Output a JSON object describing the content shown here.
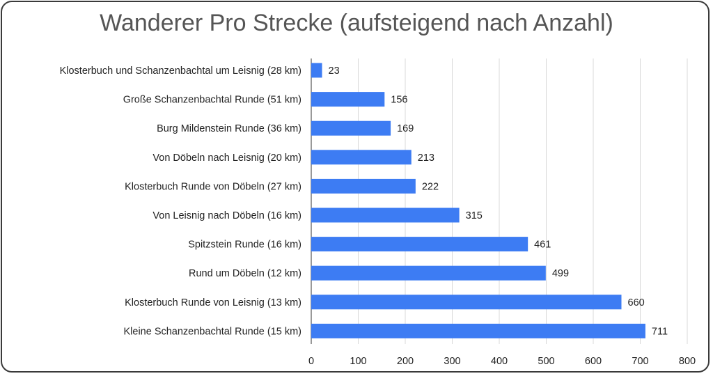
{
  "chart_data": {
    "type": "bar",
    "orientation": "horizontal",
    "title": "Wanderer Pro Strecke (aufsteigend nach Anzahl)",
    "categories": [
      "Klosterbuch und Schanzenbachtal um Leisnig (28 km)",
      "Große Schanzenbachtal Runde (51 km)",
      "Burg Mildenstein Runde (36 km)",
      "Von Döbeln nach Leisnig (20 km)",
      "Klosterbuch Runde von Döbeln (27 km)",
      "Von Leisnig nach Döbeln (16 km)",
      "Spitzstein Runde (16 km)",
      "Rund um Döbeln (12 km)",
      "Klosterbuch Runde von Leisnig (13 km)",
      "Kleine Schanzenbachtal Runde (15 km)"
    ],
    "values": [
      23,
      156,
      169,
      213,
      222,
      315,
      461,
      499,
      660,
      711
    ],
    "xlim": [
      0,
      800
    ],
    "xticks": [
      "0",
      "100",
      "200",
      "300",
      "400",
      "500",
      "600",
      "700",
      "800"
    ],
    "grid": "vertical",
    "bar_color": "#3d7cf3",
    "data_labels": true
  }
}
